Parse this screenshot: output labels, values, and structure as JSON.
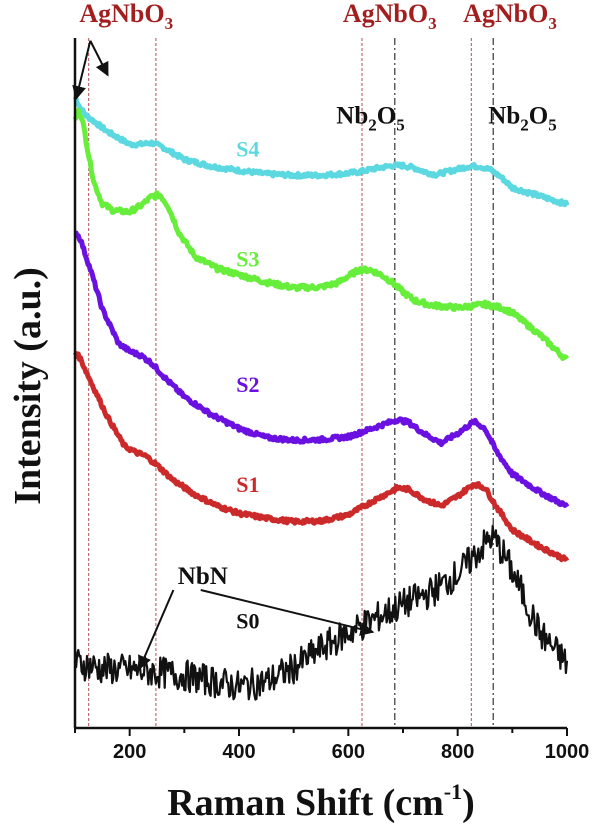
{
  "chart_data": {
    "type": "line",
    "xlabel": "Raman Shift (cm",
    "xlabel_sup": "-1",
    "xlabel_close": ")",
    "ylabel": "Intensity (a.u.)",
    "xlim": [
      100,
      1000
    ],
    "ylim": [
      0,
      100
    ],
    "x_ticks": [
      "200",
      "400",
      "600",
      "800",
      "1000"
    ],
    "grid": false,
    "series": [
      {
        "name": "S4",
        "color": "#5cd8e0",
        "noise": 0.3,
        "x": [
          100,
          110,
          120,
          130,
          140,
          160,
          180,
          200,
          220,
          240,
          260,
          280,
          300,
          350,
          400,
          450,
          500,
          550,
          600,
          620,
          650,
          680,
          700,
          720,
          740,
          760,
          780,
          800,
          820,
          840,
          860,
          880,
          900,
          950,
          1000
        ],
        "y": [
          91.5,
          89.8,
          88.8,
          88.2,
          87.6,
          86.4,
          85.5,
          84.6,
          84.6,
          84.8,
          84.2,
          83.3,
          82.4,
          81.4,
          80.8,
          80.3,
          80.1,
          80.1,
          80.4,
          80.6,
          81.1,
          81.5,
          81.5,
          81.2,
          80.6,
          80.2,
          80.6,
          81.0,
          81.4,
          81.4,
          80.9,
          79.8,
          78.3,
          77.1,
          75.9
        ]
      },
      {
        "name": "S3",
        "color": "#66ee3a",
        "noise": 0.35,
        "x": [
          100,
          106,
          112,
          118,
          125,
          135,
          150,
          170,
          200,
          220,
          240,
          255,
          270,
          290,
          320,
          360,
          400,
          450,
          500,
          550,
          580,
          600,
          620,
          640,
          660,
          680,
          700,
          720,
          750,
          800,
          850,
          880,
          900,
          950,
          1000
        ],
        "y": [
          88.0,
          89.3,
          88.6,
          86.3,
          83.0,
          79.0,
          76.0,
          75.0,
          74.8,
          75.7,
          77.0,
          77.3,
          75.7,
          71.8,
          68.3,
          66.6,
          65.7,
          64.6,
          63.8,
          63.9,
          64.5,
          65.5,
          66.4,
          66.4,
          65.7,
          64.6,
          63.2,
          62.0,
          61.3,
          60.9,
          61.4,
          60.9,
          60.2,
          57.0,
          53.3
        ]
      },
      {
        "name": "S2",
        "color": "#6a10e0",
        "noise": 0.3,
        "x": [
          100,
          110,
          130,
          150,
          180,
          200,
          220,
          240,
          270,
          300,
          350,
          400,
          450,
          500,
          550,
          600,
          650,
          690,
          710,
          740,
          770,
          800,
          830,
          850,
          870,
          900,
          950,
          1000
        ],
        "y": [
          72.0,
          70.8,
          66.0,
          60.7,
          55.7,
          54.6,
          54.0,
          52.9,
          50.3,
          48.0,
          45.4,
          43.4,
          42.1,
          41.7,
          41.8,
          42.2,
          43.6,
          44.7,
          44.3,
          42.6,
          41.3,
          42.7,
          44.4,
          43.4,
          40.2,
          36.8,
          34.2,
          32.1
        ]
      },
      {
        "name": "S1",
        "color": "#cc2a2a",
        "noise": 0.3,
        "x": [
          100,
          110,
          130,
          160,
          190,
          210,
          230,
          250,
          280,
          320,
          360,
          400,
          450,
          500,
          550,
          600,
          650,
          690,
          710,
          740,
          770,
          800,
          830,
          850,
          870,
          900,
          950,
          1000
        ],
        "y": [
          54.5,
          53.5,
          50.0,
          45.0,
          40.9,
          40.0,
          39.4,
          38.1,
          35.9,
          33.8,
          32.2,
          31.1,
          30.4,
          29.9,
          30.0,
          30.9,
          33.1,
          34.8,
          34.6,
          33.1,
          32.2,
          33.6,
          35.4,
          34.8,
          32.2,
          28.7,
          26.3,
          24.3
        ]
      },
      {
        "name": "S0",
        "color": "#111111",
        "noise": 2.3,
        "x": [
          100,
          150,
          200,
          250,
          300,
          350,
          400,
          450,
          500,
          550,
          600,
          650,
          700,
          750,
          800,
          830,
          850,
          860,
          870,
          890,
          920,
          950,
          1000
        ],
        "y": [
          9.5,
          8.6,
          8.4,
          8.1,
          7.6,
          6.8,
          6.0,
          6.7,
          8.7,
          11.5,
          13.8,
          15.9,
          17.9,
          19.6,
          22.3,
          24.9,
          26.7,
          27.6,
          27.1,
          24.3,
          19.2,
          13.8,
          9.3
        ]
      }
    ],
    "series_labels": [
      {
        "text": "S4",
        "x": 395,
        "y": 82.8
      },
      {
        "text": "S3",
        "x": 395,
        "y": 66.9
      },
      {
        "text": "S2",
        "x": 395,
        "y": 48.7
      },
      {
        "text": "S1",
        "x": 395,
        "y": 34.2
      },
      {
        "text": "S0",
        "x": 395,
        "y": 14.4
      }
    ],
    "markers": [
      {
        "x": 125,
        "label": "AgNbO3",
        "style": "red"
      },
      {
        "x": 248,
        "label": "AgNbO3",
        "style": "red"
      },
      {
        "x": 625,
        "label": "AgNbO3",
        "style": "red"
      },
      {
        "x": 825,
        "label": "AgNbO3",
        "style": "red"
      },
      {
        "x": 685,
        "label": "Nb2O5",
        "style": "black"
      },
      {
        "x": 865,
        "label": "Nb2O5",
        "style": "black"
      }
    ],
    "annotations": [
      {
        "text": "AgNbO",
        "sub": "3",
        "x": 108,
        "y": 102.3,
        "color": "red"
      },
      {
        "text": "AgNbO",
        "sub": "3",
        "x": 590,
        "y": 102.3,
        "color": "red"
      },
      {
        "text": "AgNbO",
        "sub": "3",
        "x": 810,
        "y": 102.3,
        "color": "red"
      },
      {
        "text": "Nb",
        "sub": "2",
        "text2": "O",
        "sub2": "5",
        "x": 578,
        "y": 87.6,
        "color": "black"
      },
      {
        "text": "Nb",
        "sub": "2",
        "text2": "O",
        "sub2": "5",
        "x": 856,
        "y": 87.6,
        "color": "black"
      },
      {
        "text": "NbN",
        "x": 288,
        "y": 20.9,
        "color": "black"
      }
    ]
  }
}
